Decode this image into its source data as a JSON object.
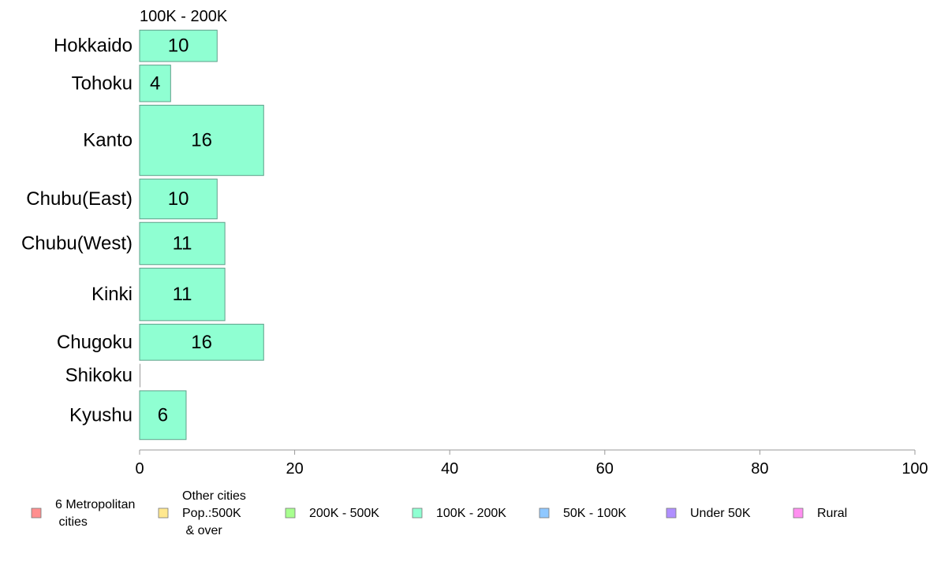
{
  "chart_data": {
    "type": "bar",
    "orientation": "horizontal",
    "panel_title": "100K - 200K",
    "categories": [
      "Hokkaido",
      "Tohoku",
      "Kanto",
      "Chubu(East)",
      "Chubu(West)",
      "Kinki",
      "Chugoku",
      "Shikoku",
      "Kyushu"
    ],
    "bar_heights_relative": [
      0.67,
      0.78,
      1.5,
      0.85,
      0.9,
      1.12,
      0.77,
      0.5,
      1.04
    ],
    "values": [
      10,
      4,
      16,
      10,
      11,
      11,
      16,
      0,
      6
    ],
    "bar_value_labels": [
      "10",
      "4",
      "16",
      "10",
      "11",
      "11",
      "16",
      "",
      "6"
    ],
    "series_color": "#8fffd2",
    "xlim": [
      0,
      100
    ],
    "x_ticks": [
      "0",
      "20",
      "40",
      "60",
      "80",
      "100"
    ],
    "grid": false,
    "legend_position": "bottom",
    "legend": [
      {
        "label": "6 Metropolitan\n cities",
        "color": "#ff8f8f"
      },
      {
        "label": "Other cities\nPop.:500K\n & over",
        "color": "#ffe88f"
      },
      {
        "label": "200K - 500K",
        "color": "#a8ff8f"
      },
      {
        "label": "100K - 200K",
        "color": "#8fffd2"
      },
      {
        "label": "50K - 100K",
        "color": "#8fc8ff"
      },
      {
        "label": "Under 50K",
        "color": "#b08fff"
      },
      {
        "label": "Rural",
        "color": "#ff8ff0"
      }
    ]
  }
}
